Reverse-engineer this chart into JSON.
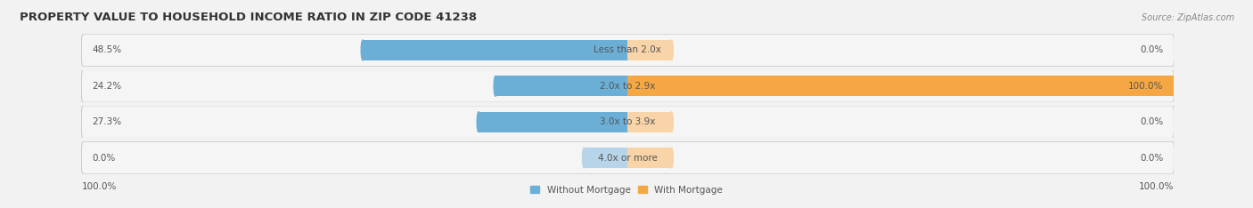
{
  "title": "PROPERTY VALUE TO HOUSEHOLD INCOME RATIO IN ZIP CODE 41238",
  "source": "Source: ZipAtlas.com",
  "categories": [
    "Less than 2.0x",
    "2.0x to 2.9x",
    "3.0x to 3.9x",
    "4.0x or more"
  ],
  "without_mortgage": [
    48.5,
    24.2,
    27.3,
    0.0
  ],
  "with_mortgage": [
    0.0,
    100.0,
    0.0,
    0.0
  ],
  "blue_color": "#6BAED6",
  "orange_color": "#F4A742",
  "blue_stub_color": "#B8D4E8",
  "orange_stub_color": "#F8D4A8",
  "bg_color": "#F2F2F2",
  "row_bg_light": "#F5F5F5",
  "row_bg_dark": "#E8E8E8",
  "title_color": "#333333",
  "source_color": "#888888",
  "label_color": "#555555",
  "title_fontsize": 9.5,
  "label_fontsize": 7.5,
  "max_val": 100.0,
  "figsize": [
    14.06,
    2.34
  ],
  "dpi": 100,
  "legend_labels": [
    "Without Mortgage",
    "With Mortgage"
  ],
  "left_axis_label": "100.0%",
  "right_axis_label": "100.0%",
  "stub_val": 8.0
}
